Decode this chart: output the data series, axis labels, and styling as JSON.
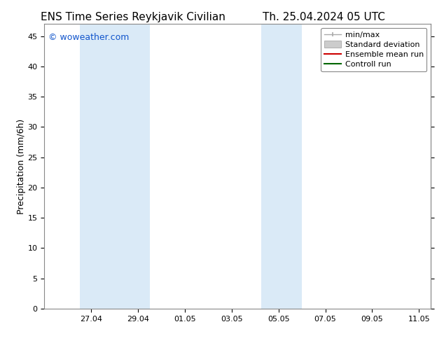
{
  "title_left": "ENS Time Series Reykjavik Civilian",
  "title_right": "Th. 25.04.2024 05 UTC",
  "ylabel": "Precipitation (mm/6h)",
  "watermark": "© woweather.com",
  "xlim_start": 0.0,
  "xlim_end": 16.5,
  "ylim": [
    0,
    47
  ],
  "yticks": [
    0,
    5,
    10,
    15,
    20,
    25,
    30,
    35,
    40,
    45
  ],
  "xtick_labels": [
    "27.04",
    "29.04",
    "01.05",
    "03.05",
    "05.05",
    "07.05",
    "09.05",
    "11.05"
  ],
  "xtick_positions": [
    2,
    4,
    6,
    8,
    10,
    12,
    14,
    16
  ],
  "shaded_bands": [
    {
      "x_start": 1.5,
      "x_end": 4.5,
      "color": "#daeaf7"
    },
    {
      "x_start": 9.25,
      "x_end": 11.0,
      "color": "#daeaf7"
    }
  ],
  "legend_entries": [
    {
      "label": "min/max",
      "color": "#aaaaaa",
      "type": "minmax"
    },
    {
      "label": "Standard deviation",
      "color": "#cccccc",
      "type": "band"
    },
    {
      "label": "Ensemble mean run",
      "color": "#cc0000",
      "type": "line"
    },
    {
      "label": "Controll run",
      "color": "#006600",
      "type": "line"
    }
  ],
  "bg_color": "#ffffff",
  "plot_bg_color": "#ffffff",
  "title_fontsize": 11,
  "axis_label_fontsize": 9,
  "tick_fontsize": 8,
  "watermark_color": "#1155cc",
  "watermark_fontsize": 9,
  "legend_fontsize": 8
}
